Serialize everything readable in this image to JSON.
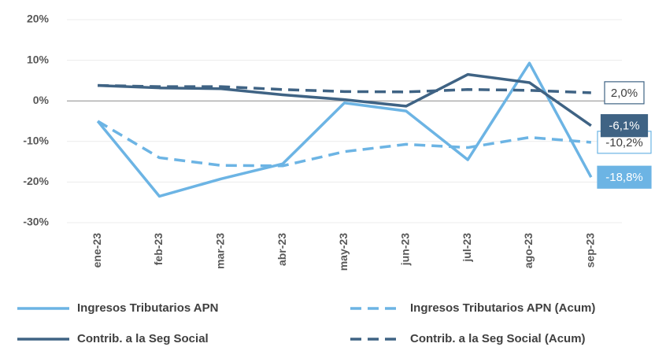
{
  "chart_data": {
    "type": "line",
    "categories": [
      "ene-23",
      "feb-23",
      "mar-23",
      "abr-23",
      "may-23",
      "jun-23",
      "jul-23",
      "ago-23",
      "sep-23"
    ],
    "series": [
      {
        "name": "Ingresos Tributarios APN",
        "color": "#6cb4e4",
        "dashed": false,
        "label_style": "filled",
        "values": [
          -5,
          -23.5,
          -19.2,
          -15.5,
          -0.5,
          -2.5,
          -14.5,
          9.3,
          -18.8
        ],
        "value_labels": [
          null,
          null,
          null,
          null,
          null,
          null,
          null,
          null,
          "-18,8%"
        ]
      },
      {
        "name": "Ingresos Tributarios APN (Acum)",
        "color": "#6cb4e4",
        "dashed": true,
        "label_style": "outlined",
        "values": [
          -5,
          -14,
          -15.9,
          -16,
          -12.5,
          -10.7,
          -11.5,
          -9,
          -10.2
        ],
        "value_labels": [
          null,
          null,
          null,
          null,
          null,
          null,
          null,
          null,
          "-10,2%"
        ]
      },
      {
        "name": "Contrib. a la Seg Social",
        "color": "#3f6384",
        "dashed": false,
        "label_style": "filled",
        "values": [
          3.8,
          3.2,
          3.0,
          1.5,
          0.3,
          -1.3,
          6.5,
          4.5,
          -6.1
        ],
        "value_labels": [
          null,
          null,
          null,
          null,
          null,
          null,
          null,
          null,
          "-6,1%"
        ]
      },
      {
        "name": "Contrib. a la Seg Social (Acum)",
        "color": "#3f6384",
        "dashed": true,
        "label_style": "outlined",
        "values": [
          3.8,
          3.5,
          3.5,
          2.8,
          2.3,
          2.2,
          2.8,
          2.6,
          2.0
        ],
        "value_labels": [
          null,
          null,
          null,
          null,
          null,
          null,
          null,
          null,
          "2,0%"
        ]
      }
    ],
    "ylim": [
      -30,
      20
    ],
    "yticks": [
      {
        "value": -30,
        "label": "-30%"
      },
      {
        "value": -20,
        "label": "-20%"
      },
      {
        "value": -10,
        "label": "-10%"
      },
      {
        "value": 0,
        "label": "0%"
      },
      {
        "value": 10,
        "label": "10%"
      },
      {
        "value": 20,
        "label": "20%"
      }
    ],
    "grid": true
  }
}
